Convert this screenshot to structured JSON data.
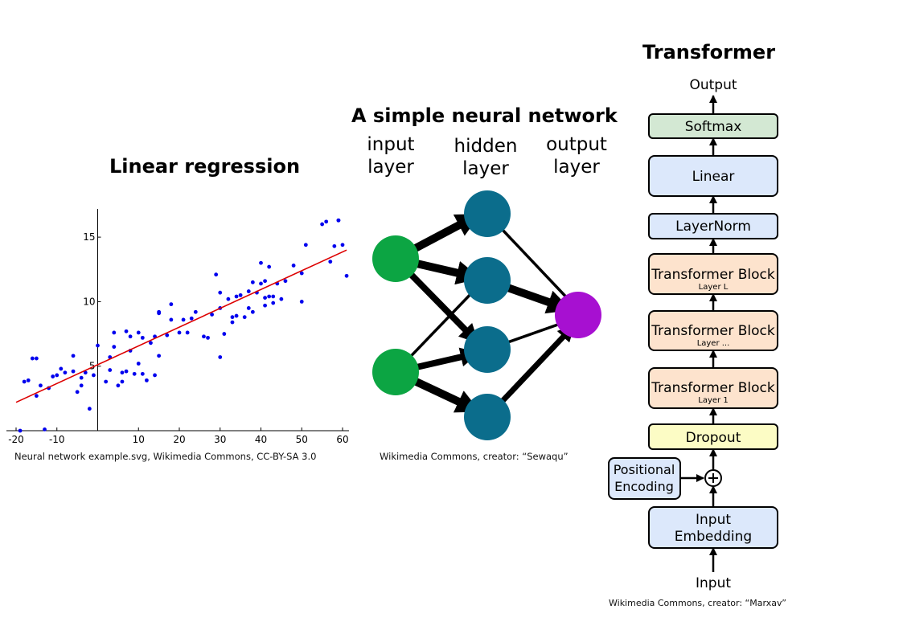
{
  "regression": {
    "title": "Linear regression",
    "credit": "Neural network example.svg, Wikimedia Commons, CC-BY-SA 3.0",
    "chart_data": {
      "type": "scatter",
      "xlim": [
        -20,
        60
      ],
      "ylim": [
        0,
        17
      ],
      "x_ticks": [
        -20,
        -10,
        10,
        20,
        30,
        40,
        50,
        60
      ],
      "y_ticks": [
        5,
        10,
        15
      ],
      "grid": false,
      "series": [
        {
          "color": "#0000ee",
          "points": [
            [
              -19,
              0
            ],
            [
              -18,
              3.8
            ],
            [
              -17,
              3.9
            ],
            [
              -16,
              5.6
            ],
            [
              -15,
              5.6
            ],
            [
              -15,
              2.7
            ],
            [
              -14,
              3.5
            ],
            [
              -13,
              0.1
            ],
            [
              -12,
              3.3
            ],
            [
              -11,
              4.2
            ],
            [
              -10,
              4.3
            ],
            [
              -9,
              4.8
            ],
            [
              -8,
              4.5
            ],
            [
              -6,
              5.8
            ],
            [
              -6,
              4.6
            ],
            [
              -5,
              3
            ],
            [
              -4,
              3.5
            ],
            [
              -4,
              4.1
            ],
            [
              -3,
              4.5
            ],
            [
              -2,
              1.7
            ],
            [
              -1,
              4.3
            ],
            [
              0,
              6.6
            ],
            [
              2,
              3.8
            ],
            [
              3,
              5.7
            ],
            [
              3,
              4.7
            ],
            [
              4,
              6.5
            ],
            [
              4,
              7.6
            ],
            [
              5,
              3.5
            ],
            [
              6,
              3.8
            ],
            [
              6,
              4.5
            ],
            [
              7,
              7.7
            ],
            [
              7,
              4.6
            ],
            [
              8,
              7.3
            ],
            [
              8,
              6.2
            ],
            [
              9,
              4.4
            ],
            [
              10,
              7.6
            ],
            [
              10,
              5.2
            ],
            [
              11,
              4.4
            ],
            [
              11,
              7.2
            ],
            [
              12,
              3.9
            ],
            [
              13,
              6.8
            ],
            [
              14,
              7.3
            ],
            [
              14,
              4.3
            ],
            [
              15,
              5.8
            ],
            [
              15,
              9.2
            ],
            [
              15,
              9.1
            ],
            [
              17,
              7.4
            ],
            [
              18,
              8.6
            ],
            [
              18,
              9.8
            ],
            [
              20,
              7.6
            ],
            [
              21,
              8.6
            ],
            [
              22,
              7.6
            ],
            [
              23,
              8.7
            ],
            [
              24,
              9.2
            ],
            [
              26,
              7.3
            ],
            [
              27,
              7.2
            ],
            [
              28,
              9
            ],
            [
              29,
              12.1
            ],
            [
              30,
              5.7
            ],
            [
              30,
              9.5
            ],
            [
              30,
              10.7
            ],
            [
              31,
              7.5
            ],
            [
              32,
              10.2
            ],
            [
              33,
              8.8
            ],
            [
              33,
              8.4
            ],
            [
              34,
              8.9
            ],
            [
              34,
              10.4
            ],
            [
              35,
              10.5
            ],
            [
              36,
              8.8
            ],
            [
              37,
              9.5
            ],
            [
              37,
              10.8
            ],
            [
              38,
              11.5
            ],
            [
              38,
              9.2
            ],
            [
              39,
              10.7
            ],
            [
              40,
              11.4
            ],
            [
              40,
              13
            ],
            [
              41,
              11.6
            ],
            [
              41,
              10.3
            ],
            [
              41,
              9.7
            ],
            [
              42,
              10.4
            ],
            [
              42,
              12.7
            ],
            [
              43,
              10.4
            ],
            [
              43,
              9.9
            ],
            [
              44,
              11.4
            ],
            [
              45,
              10.2
            ],
            [
              46,
              11.6
            ],
            [
              48,
              12.8
            ],
            [
              50,
              12.2
            ],
            [
              50,
              10
            ],
            [
              51,
              14.4
            ],
            [
              55,
              16
            ],
            [
              56,
              16.2
            ],
            [
              57,
              13.1
            ],
            [
              58,
              14.3
            ],
            [
              59,
              16.3
            ],
            [
              59,
              16.3
            ],
            [
              60,
              14.4
            ],
            [
              61,
              12
            ]
          ]
        },
        {
          "type": "line",
          "color": "#dd0000",
          "x": [
            -20,
            61
          ],
          "y": [
            2.2,
            14
          ]
        }
      ]
    }
  },
  "nn": {
    "title": "A simple neural network",
    "layers": [
      {
        "line1": "input",
        "line2": "layer"
      },
      {
        "line1": "hidden",
        "line2": "layer"
      },
      {
        "line1": "output",
        "line2": "layer"
      }
    ],
    "colors": {
      "input": "#0ca543",
      "hidden": "#0b6d8c",
      "output": "#a710d1"
    },
    "credit": "Wikimedia Commons, creator: “Sewaqu”"
  },
  "transformer": {
    "title": "Transformer",
    "output_label": "Output",
    "input_label": "Input",
    "blocks": {
      "softmax": "Softmax",
      "linear": "Linear",
      "layernorm": "LayerNorm",
      "tb_main": "Transformer Block",
      "tb_l": "Layer L",
      "tb_dots": "Layer ...",
      "tb_1": "Layer 1",
      "dropout": "Dropout",
      "pos_line1": "Positional",
      "pos_line2": "Encoding",
      "emb_line1": "Input",
      "emb_line2": "Embedding",
      "plus": "+"
    },
    "colors": {
      "softmax": "#d3e8d3",
      "linear": "#dce8fb",
      "block": "#fde3cd",
      "dropout": "#fcfcc5"
    },
    "credit": "Wikimedia Commons, creator: “Marxav”"
  }
}
